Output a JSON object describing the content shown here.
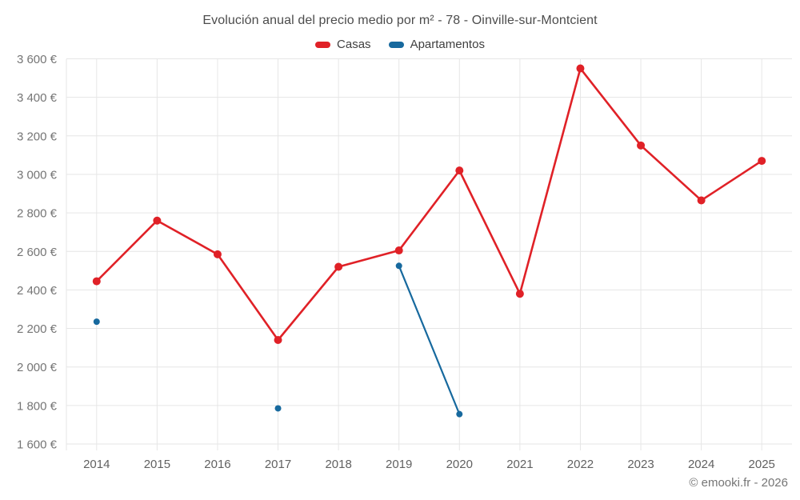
{
  "header": {
    "title": "Evolución anual del precio medio por m² - 78 - Oinville-sur-Montcient"
  },
  "footer": {
    "credit": "© emooki.fr - 2026"
  },
  "chart_data": {
    "type": "line",
    "title": "Evolución anual del precio medio por m² - 78 - Oinville-sur-Montcient",
    "categories": [
      "2014",
      "2015",
      "2016",
      "2017",
      "2018",
      "2019",
      "2020",
      "2021",
      "2022",
      "2023",
      "2024",
      "2025"
    ],
    "series": [
      {
        "name": "Casas",
        "color": "#e02127",
        "values": [
          2445,
          2760,
          2585,
          2140,
          2520,
          2605,
          3020,
          2380,
          3550,
          3150,
          2865,
          3070
        ]
      },
      {
        "name": "Apartamentos",
        "color": "#17699e",
        "values": [
          2235,
          null,
          null,
          1785,
          null,
          2525,
          1755,
          null,
          null,
          null,
          null,
          null
        ]
      }
    ],
    "xlabel": "",
    "ylabel": "",
    "y_unit": "€",
    "ylim": [
      1600,
      3600
    ],
    "ytick_step": 200,
    "grid": true,
    "legend_position": "top"
  }
}
